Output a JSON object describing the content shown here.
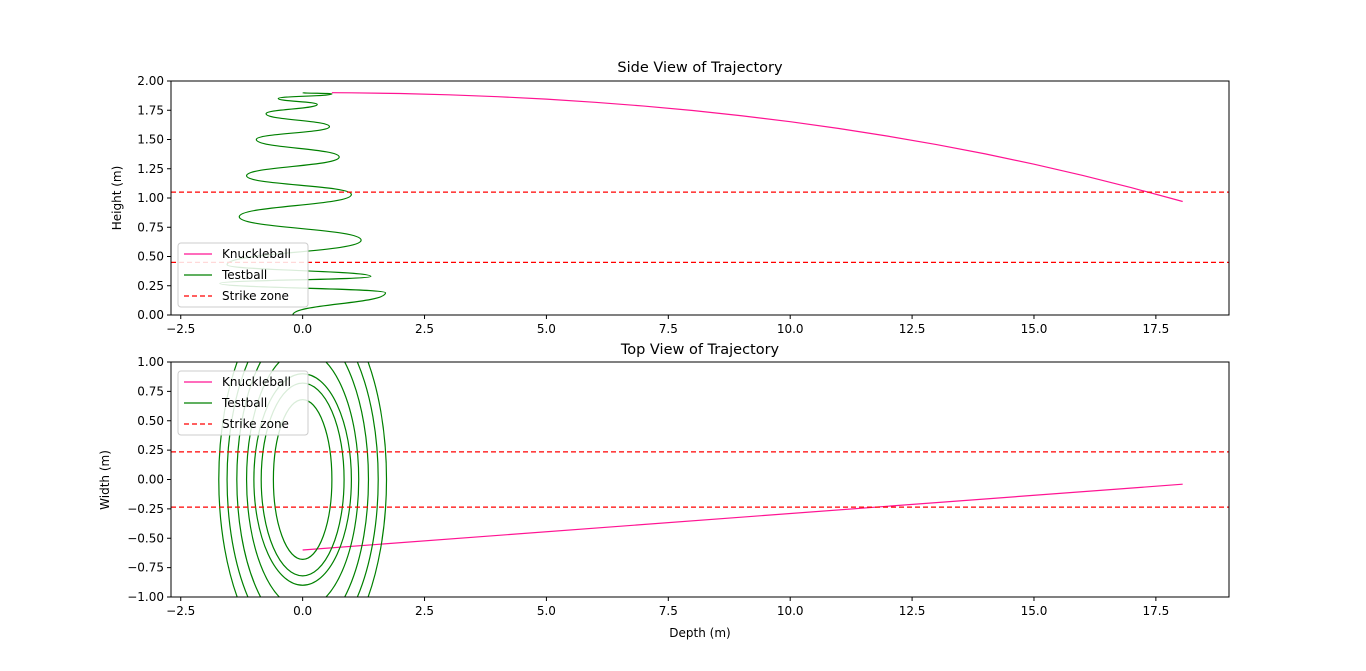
{
  "chart_data": [
    {
      "type": "line",
      "title": "Side View of Trajectory",
      "xlabel": "",
      "ylabel": "Height (m)",
      "xlim": [
        -2.7,
        19.0
      ],
      "ylim": [
        0.0,
        2.0
      ],
      "xticks": [
        -2.5,
        0.0,
        2.5,
        5.0,
        7.5,
        10.0,
        12.5,
        15.0,
        17.5
      ],
      "xtick_labels": [
        "−2.5",
        "0.0",
        "2.5",
        "5.0",
        "7.5",
        "10.0",
        "12.5",
        "15.0",
        "17.5"
      ],
      "yticks": [
        0.0,
        0.25,
        0.5,
        0.75,
        1.0,
        1.25,
        1.5,
        1.75,
        2.0
      ],
      "ytick_labels": [
        "0.00",
        "0.25",
        "0.50",
        "0.75",
        "1.00",
        "1.25",
        "1.50",
        "1.75",
        "2.00"
      ],
      "grid": false,
      "legend": {
        "position": "lower-left"
      },
      "series": [
        {
          "name": "Knuckleball",
          "color": "#ff1493",
          "style": "solid",
          "x": [
            0.6,
            1.0,
            2.0,
            3.0,
            4.0,
            5.0,
            6.0,
            7.0,
            8.0,
            9.0,
            10.0,
            11.0,
            12.0,
            13.0,
            14.0,
            15.0,
            16.0,
            17.0,
            18.05
          ],
          "y": [
            1.9,
            1.899,
            1.893,
            1.882,
            1.866,
            1.845,
            1.818,
            1.786,
            1.748,
            1.703,
            1.652,
            1.594,
            1.529,
            1.457,
            1.377,
            1.289,
            1.193,
            1.088,
            0.97
          ]
        },
        {
          "name": "Testball",
          "color": "#008000",
          "style": "solid",
          "x": [
            0.0,
            0.6,
            -0.5,
            0.3,
            -0.75,
            0.55,
            -0.95,
            0.75,
            -1.15,
            1.0,
            -1.3,
            1.2,
            -1.55,
            1.4,
            -1.7,
            1.7,
            -0.2
          ],
          "y": [
            1.9,
            1.89,
            1.85,
            1.8,
            1.72,
            1.61,
            1.5,
            1.35,
            1.19,
            1.03,
            0.84,
            0.64,
            0.43,
            0.33,
            0.27,
            0.19,
            0.0
          ]
        },
        {
          "name": "Strike zone",
          "color": "#ff0000",
          "style": "dashed",
          "y": [
            1.05,
            0.45
          ]
        }
      ]
    },
    {
      "type": "line",
      "title": "Top View of Trajectory",
      "xlabel": "Depth (m)",
      "ylabel": "Width (m)",
      "xlim": [
        -2.7,
        19.0
      ],
      "ylim": [
        -1.0,
        1.0
      ],
      "xticks": [
        -2.5,
        0.0,
        2.5,
        5.0,
        7.5,
        10.0,
        12.5,
        15.0,
        17.5
      ],
      "xtick_labels": [
        "−2.5",
        "0.0",
        "2.5",
        "5.0",
        "7.5",
        "10.0",
        "12.5",
        "15.0",
        "17.5"
      ],
      "yticks": [
        -1.0,
        -0.75,
        -0.5,
        -0.25,
        0.0,
        0.25,
        0.5,
        0.75,
        1.0
      ],
      "ytick_labels": [
        "−1.00",
        "−0.75",
        "−0.50",
        "−0.25",
        "0.00",
        "0.25",
        "0.50",
        "0.75",
        "1.00"
      ],
      "grid": false,
      "legend": {
        "position": "upper-left"
      },
      "series": [
        {
          "name": "Knuckleball",
          "color": "#ff1493",
          "style": "solid",
          "x": [
            0.0,
            18.05
          ],
          "y": [
            -0.6,
            -0.04
          ]
        },
        {
          "name": "Testball",
          "color": "#008000",
          "style": "solid",
          "rings": [
            {
              "x_half_width": 0.6,
              "y_half_height": 0.68
            },
            {
              "x_half_width": 0.85,
              "y_half_height": 0.82
            },
            {
              "x_half_width": 1.0,
              "y_half_height": 0.9
            },
            {
              "x_half_width": 1.15,
              "y_half_height": 1.1
            },
            {
              "x_half_width": 1.35,
              "y_half_height": 1.3
            },
            {
              "x_half_width": 1.55,
              "y_half_height": 1.45
            },
            {
              "x_half_width": 1.72,
              "y_half_height": 1.6
            }
          ]
        },
        {
          "name": "Strike zone",
          "color": "#ff0000",
          "style": "dashed",
          "y": [
            0.235,
            -0.235
          ]
        }
      ]
    }
  ]
}
